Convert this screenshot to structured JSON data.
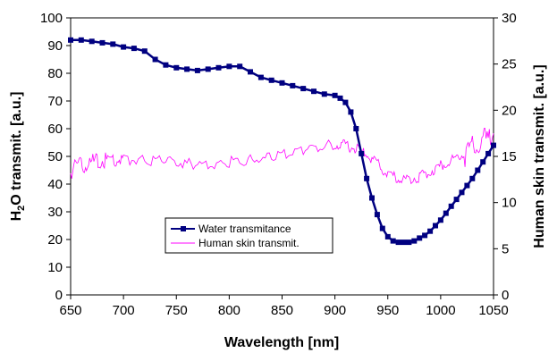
{
  "chart_data": {
    "type": "line",
    "x_axis": {
      "label": "Wavelength [nm]",
      "range": [
        650,
        1050
      ],
      "ticks": [
        650,
        700,
        750,
        800,
        850,
        900,
        950,
        1000,
        1050
      ]
    },
    "y_left": {
      "label_main": "H",
      "label_sub": "2",
      "label_rest": "O transmit. [a.u.]",
      "range": [
        0,
        100
      ],
      "ticks": [
        0,
        10,
        20,
        30,
        40,
        50,
        60,
        70,
        80,
        90,
        100
      ]
    },
    "y_right": {
      "label": "Human skin transmit. [a.u.]",
      "range": [
        0,
        30
      ],
      "ticks": [
        0,
        5,
        10,
        15,
        20,
        25,
        30
      ]
    },
    "grid": false,
    "legend_position": "lower-left-center",
    "series": [
      {
        "name": "Water transmitance",
        "axis": "left",
        "color": "#000080",
        "marker": "square",
        "x": [
          650,
          660,
          670,
          680,
          690,
          700,
          710,
          720,
          730,
          740,
          750,
          760,
          770,
          780,
          790,
          800,
          810,
          820,
          830,
          840,
          850,
          860,
          870,
          880,
          890,
          900,
          905,
          910,
          915,
          920,
          925,
          930,
          935,
          940,
          945,
          950,
          955,
          960,
          965,
          970,
          975,
          980,
          985,
          990,
          995,
          1000,
          1005,
          1010,
          1015,
          1020,
          1025,
          1030,
          1035,
          1040,
          1045,
          1050
        ],
        "y": [
          92,
          92,
          91.5,
          91,
          90.5,
          89.5,
          89,
          88,
          85,
          83,
          82,
          81.5,
          81,
          81.5,
          82,
          82.5,
          82.5,
          80.5,
          78.5,
          77.5,
          76.5,
          75.5,
          74.5,
          73.5,
          72.5,
          72,
          71,
          69.5,
          66,
          60,
          51,
          42,
          35,
          29,
          24,
          21,
          19.5,
          19,
          19,
          19,
          19.5,
          20.5,
          21.5,
          23,
          25,
          27,
          29.5,
          32,
          34.5,
          37,
          39.5,
          42,
          45,
          48,
          51,
          54
        ]
      },
      {
        "name": "Human skin transmit.",
        "axis": "right",
        "color": "#ff00ff",
        "marker": "none",
        "x": [
          650,
          660,
          670,
          680,
          690,
          700,
          720,
          740,
          760,
          780,
          800,
          820,
          840,
          860,
          880,
          900,
          910,
          920,
          930,
          940,
          950,
          960,
          970,
          980,
          990,
          1000,
          1010,
          1020,
          1030,
          1040,
          1050
        ],
        "y": [
          13.5,
          14,
          14.3,
          14.5,
          14.6,
          14.6,
          14.6,
          14.5,
          14.2,
          14.2,
          14.4,
          14.6,
          14.9,
          15.5,
          16.0,
          16.3,
          16.2,
          15.8,
          15.2,
          14.2,
          13.0,
          12.6,
          12.5,
          12.8,
          13.3,
          14.0,
          14.6,
          15.2,
          15.8,
          16.5,
          17.5
        ]
      }
    ]
  }
}
